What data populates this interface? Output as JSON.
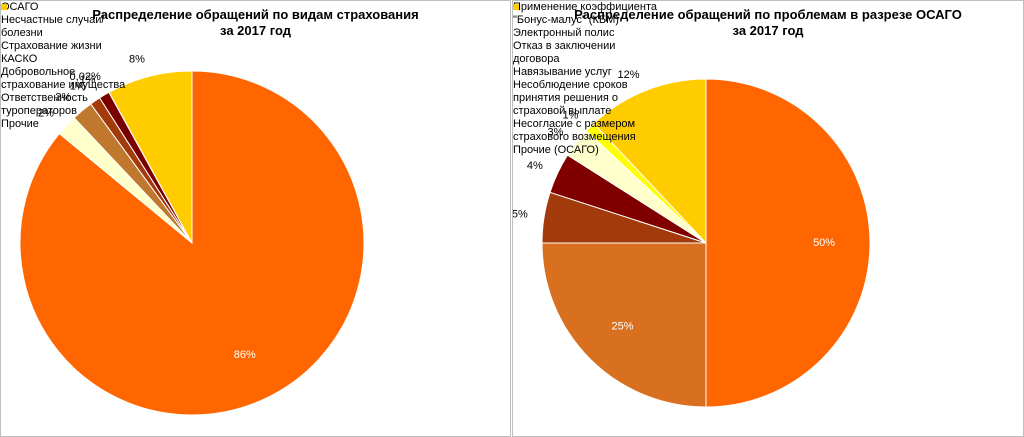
{
  "chart_data": [
    {
      "type": "pie",
      "title": "Распределение обращений по видам страхования\nза 2017 год",
      "categories": [
        "ОСАГО",
        "Несчастные случаи/болезни",
        "Страхование жизни",
        "КАСКО",
        "Добровольное страхование имущества",
        "Ответственность туроператоров",
        "Прочие"
      ],
      "values": [
        86,
        2,
        2,
        1,
        1,
        0.02,
        8
      ],
      "value_labels": [
        "86%",
        "2%",
        "2%",
        "1%",
        "1%",
        "0,02%",
        "8%"
      ],
      "colors": [
        "#ff6600",
        "#ffffcc",
        "#c0782e",
        "#a33a0c",
        "#7a0000",
        "#ffff00",
        "#ffcc00"
      ],
      "legend": "right"
    },
    {
      "type": "pie",
      "title": "Распределение обращений по проблемам в разрезе ОСАГО\nза 2017 год",
      "categories": [
        "Применение коэффициента \"Бонус-малус\" (КБМ)",
        "Электронный полис",
        "Отказ в заключении договора",
        "Навязывание услуг",
        "Несоблюдение сроков принятия решения о страховой выплате",
        "Несогласие с размером страхового возмещения",
        "Прочие (ОСАГО)"
      ],
      "values": [
        50,
        25,
        5,
        4,
        3,
        1,
        12
      ],
      "value_labels": [
        "50%",
        "25%",
        "5%",
        "4%",
        "3%",
        "1%",
        "12%"
      ],
      "colors": [
        "#ff6600",
        "#d9701f",
        "#a33a0c",
        "#800000",
        "#ffffcc",
        "#ffff00",
        "#ffcc00"
      ],
      "legend": "right"
    }
  ]
}
